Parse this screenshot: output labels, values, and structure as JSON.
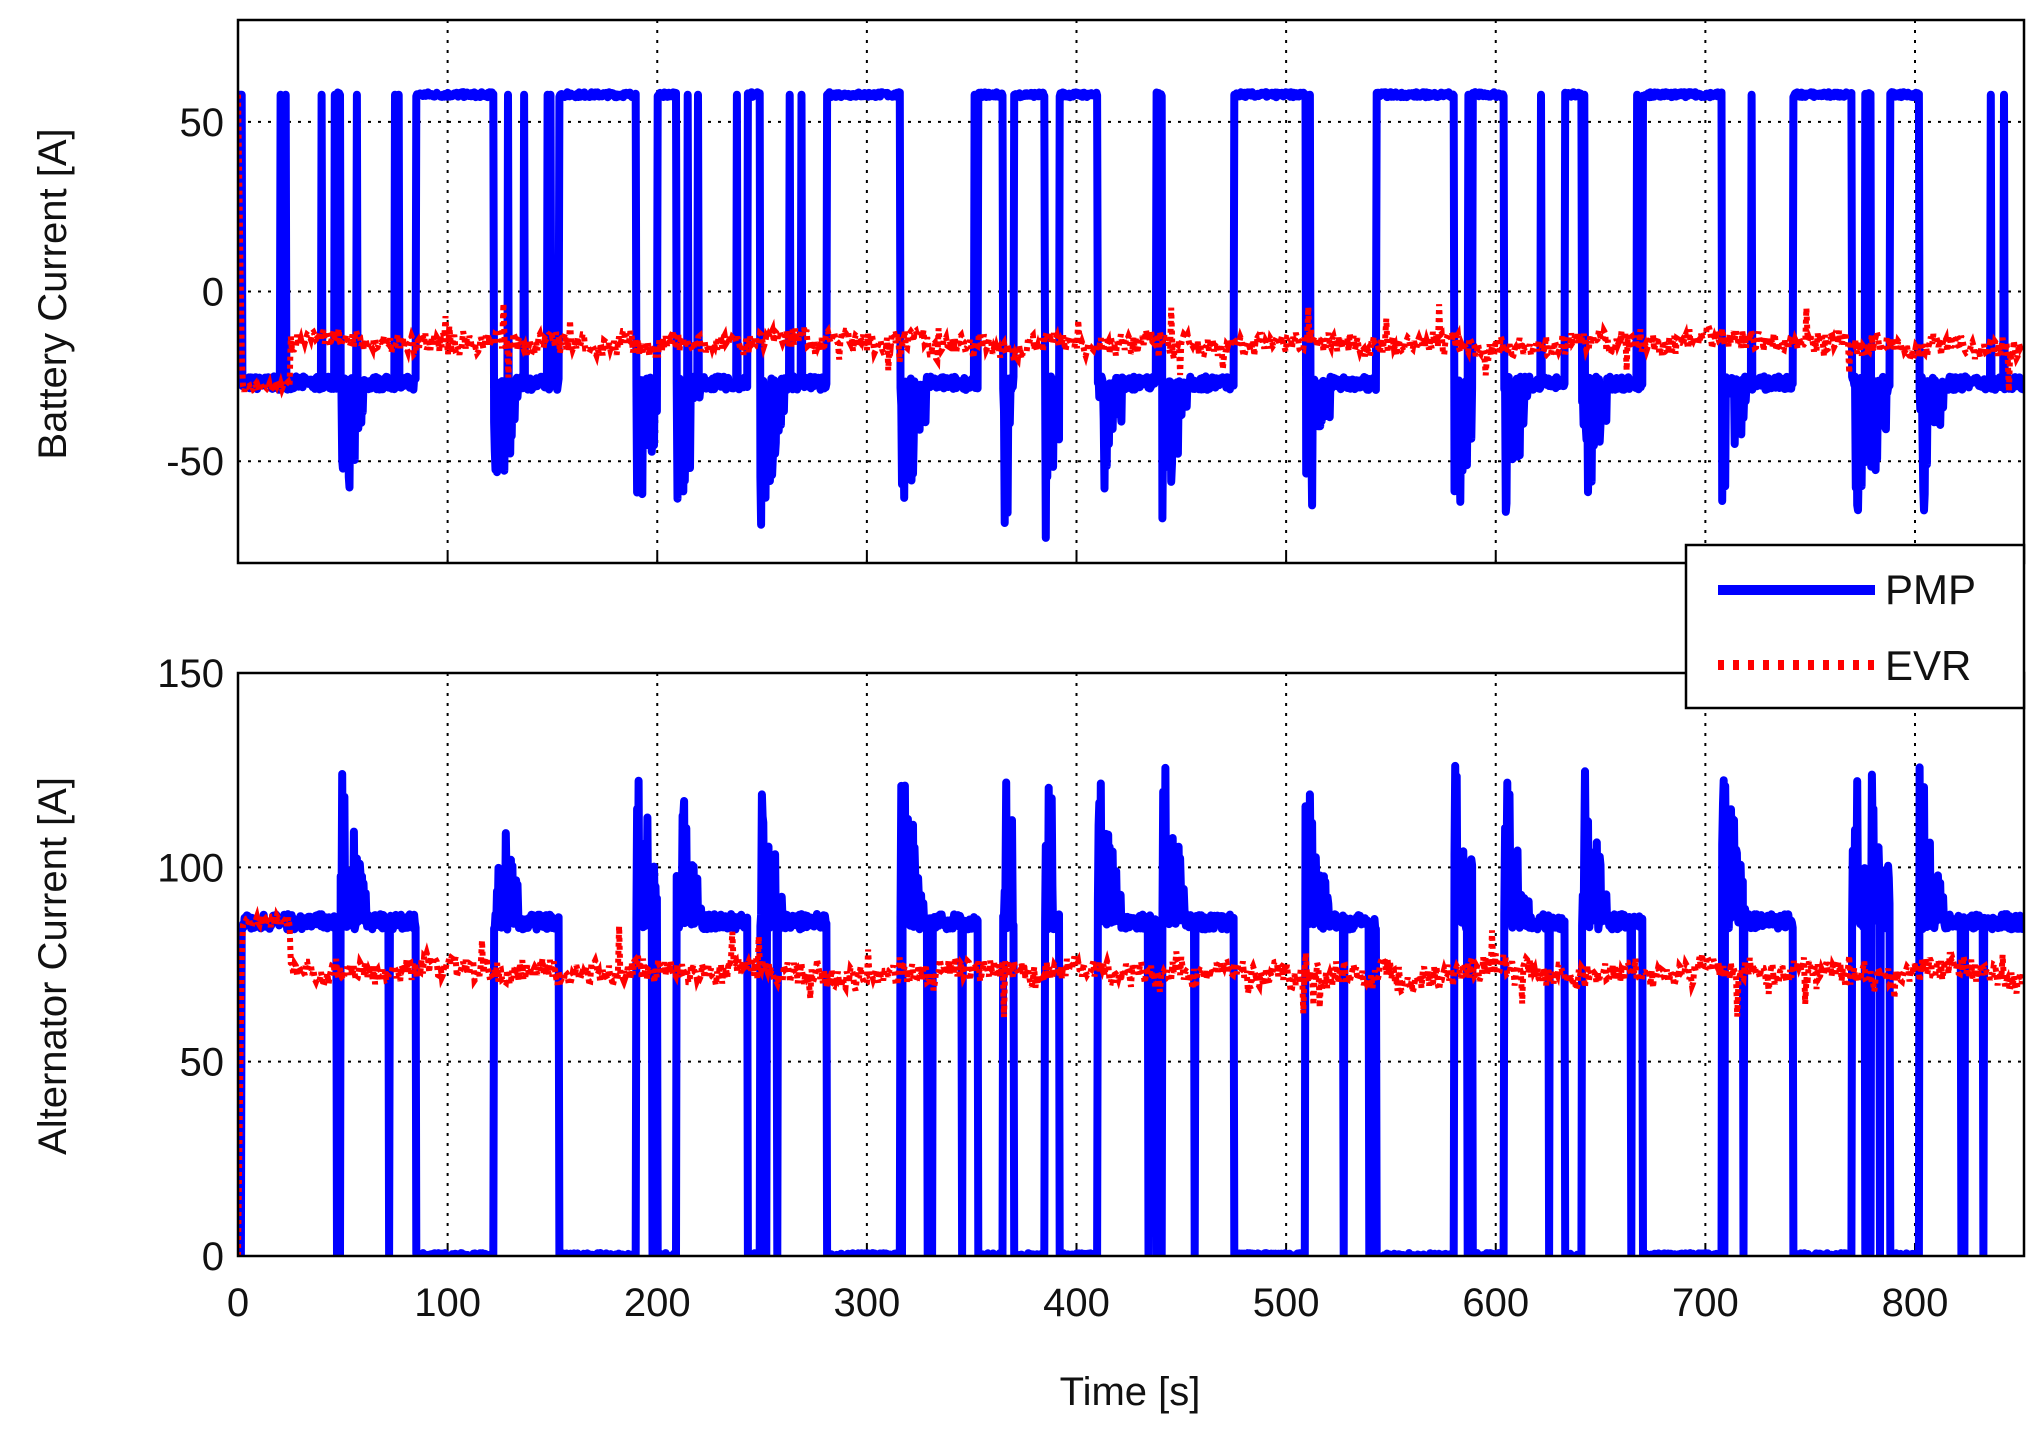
{
  "chart_data": [
    {
      "type": "line",
      "ylabel": "Battery Current [A]",
      "xlabel": "",
      "xlim": [
        0,
        852
      ],
      "ylim": [
        -80,
        80
      ],
      "xticks": [
        0,
        100,
        200,
        300,
        400,
        500,
        600,
        700,
        800
      ],
      "yticks": [
        -50,
        0,
        50
      ],
      "grid": true,
      "series": [
        {
          "name": "PMP",
          "color": "#0000ff",
          "style": "solid",
          "low_level": -27,
          "high_level": 58,
          "high_intervals": [
            [
              47,
              49
            ],
            [
              85,
              122
            ],
            [
              153,
              190
            ],
            [
              200,
              209
            ],
            [
              243,
              249
            ],
            [
              281,
              316
            ],
            [
              353,
              365
            ],
            [
              370,
              385
            ],
            [
              392,
              410
            ],
            [
              438,
              441
            ],
            [
              475,
              509
            ],
            [
              543,
              580
            ],
            [
              589,
              604
            ],
            [
              633,
              641
            ],
            [
              670,
              708
            ],
            [
              742,
              770
            ],
            [
              776,
              779
            ],
            [
              788,
              802
            ]
          ],
          "transient_min": -75
        },
        {
          "name": "EVR",
          "color": "#ff0000",
          "style": "dotted",
          "initial_level": -28,
          "mean_level": -15,
          "spread": 5
        }
      ]
    },
    {
      "type": "line",
      "ylabel": "Alternator Current [A]",
      "xlabel": "Time [s]",
      "xlim": [
        0,
        852
      ],
      "ylim": [
        0,
        150
      ],
      "xticks": [
        0,
        100,
        200,
        300,
        400,
        500,
        600,
        700,
        800
      ],
      "yticks": [
        0,
        50,
        100,
        150
      ],
      "grid": true,
      "series": [
        {
          "name": "PMP",
          "color": "#0000ff",
          "style": "solid",
          "low_level": 86,
          "high_level": 0,
          "high_intervals": "same as battery",
          "transient_max": 130
        },
        {
          "name": "EVR",
          "color": "#ff0000",
          "style": "dotted",
          "initial_level": 86,
          "mean_level": 73,
          "spread": 5
        }
      ]
    }
  ],
  "legend": {
    "placement": "right, between plots",
    "entries": [
      "PMP",
      "EVR"
    ]
  }
}
